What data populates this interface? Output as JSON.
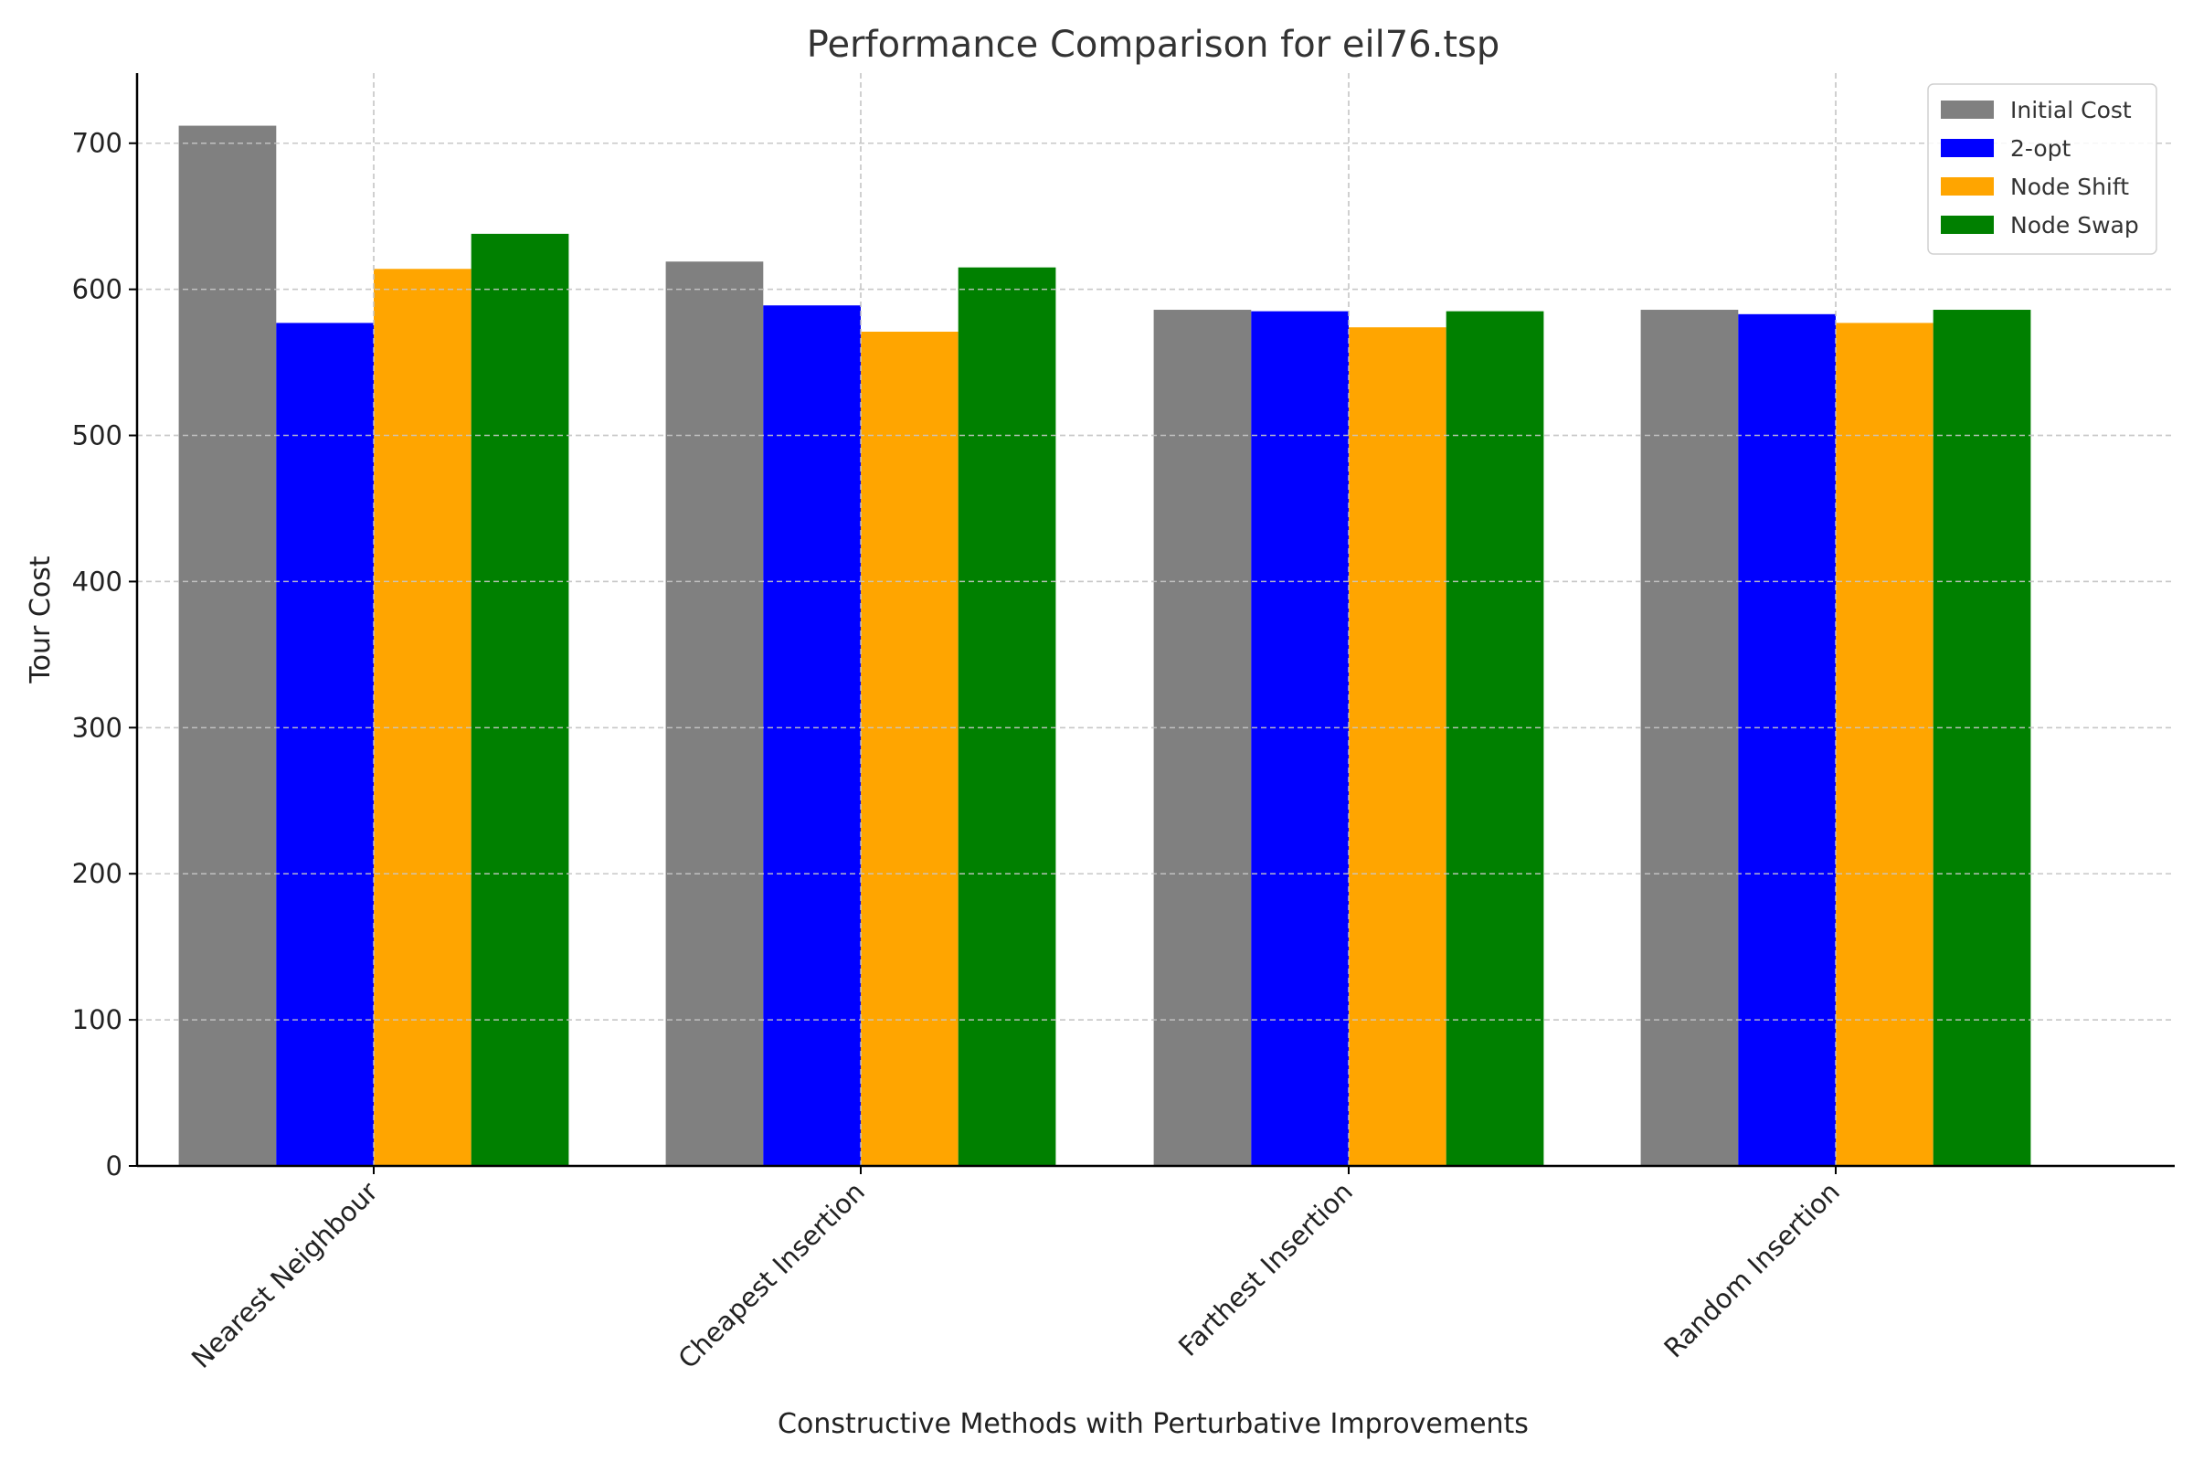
{
  "chart_data": {
    "type": "bar",
    "title": "Performance Comparison for eil76.tsp",
    "xlabel": "Constructive Methods with Perturbative Improvements",
    "ylabel": "Tour Cost",
    "categories": [
      "Nearest Neighbour",
      "Cheapest Insertion",
      "Farthest Insertion",
      "Random Insertion"
    ],
    "series": [
      {
        "name": "Initial Cost",
        "color": "#808080",
        "values": [
          712,
          619,
          586,
          586
        ]
      },
      {
        "name": "2-opt",
        "color": "#0000ff",
        "values": [
          577,
          589,
          585,
          583
        ]
      },
      {
        "name": "Node Shift",
        "color": "#ffa500",
        "values": [
          614,
          571,
          574,
          577
        ]
      },
      {
        "name": "Node Swap",
        "color": "#008000",
        "values": [
          638,
          615,
          585,
          586
        ]
      }
    ],
    "yticks": [
      0,
      100,
      200,
      300,
      400,
      500,
      600,
      700
    ],
    "ylim": [
      0,
      748
    ],
    "grid": true,
    "legend_position": "top-right"
  }
}
